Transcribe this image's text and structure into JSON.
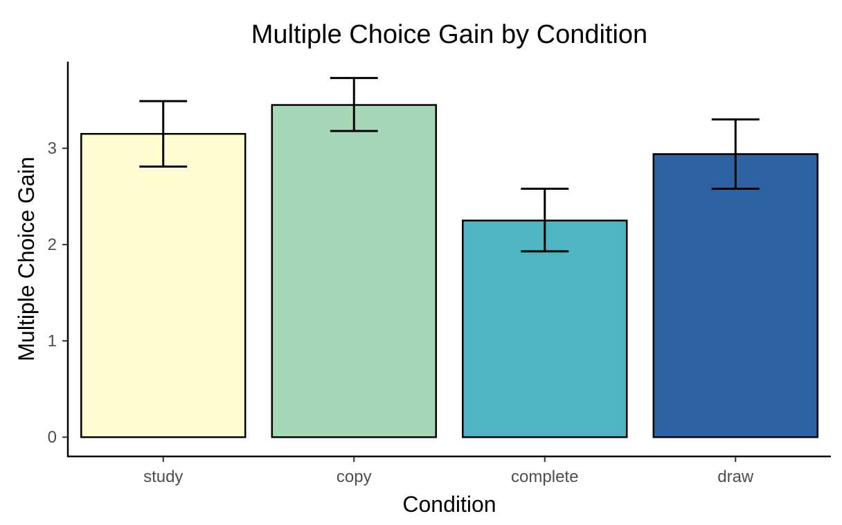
{
  "chart_data": {
    "type": "bar",
    "title": "Multiple Choice Gain by Condition",
    "xlabel": "Condition",
    "ylabel": "Multiple Choice Gain",
    "categories": [
      "study",
      "copy",
      "complete",
      "draw"
    ],
    "values": [
      3.15,
      3.45,
      2.25,
      2.94
    ],
    "error_low": [
      2.81,
      3.18,
      1.93,
      2.58
    ],
    "error_high": [
      3.49,
      3.73,
      2.58,
      3.3
    ],
    "colors": [
      "#FFFCD2",
      "#A6D8B7",
      "#4FB5C3",
      "#2C62A2"
    ],
    "yticks": [
      0,
      1,
      2,
      3
    ],
    "ylim": [
      -0.2,
      3.9
    ],
    "grid": false,
    "legend": "none"
  }
}
